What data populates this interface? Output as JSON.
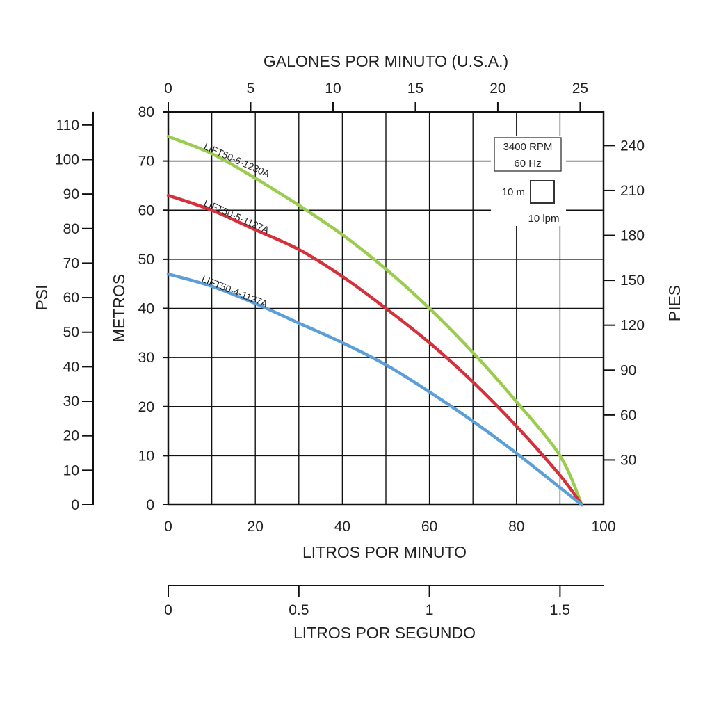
{
  "chart_data": {
    "type": "line",
    "title": "",
    "grid": true,
    "x_axis": {
      "label": "LITROS POR MINUTO",
      "range": [
        0,
        100
      ],
      "ticks": [
        0,
        20,
        40,
        60,
        80,
        100
      ]
    },
    "x2_axis_top": {
      "label": "GALONES POR MINUTO (U.S.A.)",
      "range": [
        0,
        26.4
      ],
      "ticks": [
        0,
        5,
        10,
        15,
        20,
        25
      ]
    },
    "x3_axis_bottom": {
      "label": "LITROS POR SEGUNDO",
      "range": [
        0,
        1.67
      ],
      "ticks": [
        0,
        0.5,
        1,
        1.5
      ]
    },
    "y_axis": {
      "label": "METROS",
      "range": [
        0,
        80
      ],
      "ticks": [
        0,
        10,
        20,
        30,
        40,
        50,
        60,
        70,
        80
      ]
    },
    "y2_axis_left": {
      "label": "PSI",
      "range": [
        0,
        113.8
      ],
      "ticks": [
        0,
        10,
        20,
        30,
        40,
        50,
        60,
        70,
        80,
        90,
        100,
        110
      ]
    },
    "y3_axis_right": {
      "label": "PIES",
      "range": [
        0,
        262.5
      ],
      "ticks": [
        30,
        60,
        90,
        120,
        150,
        180,
        210,
        240
      ]
    },
    "series": [
      {
        "name": "LIFT50-6-1230A",
        "color": "#9acd4f",
        "label_angle": 24,
        "label_anchor": [
          8,
          72.5
        ],
        "x": [
          0,
          10,
          20,
          30,
          40,
          50,
          60,
          70,
          80,
          90,
          95
        ],
        "y": [
          75,
          71.5,
          66.5,
          61,
          55,
          48,
          40,
          31,
          21,
          10,
          0
        ]
      },
      {
        "name": "LIFT50-5-1127A",
        "color": "#d6303a",
        "label_angle": 24,
        "label_anchor": [
          8,
          61
        ],
        "x": [
          0,
          10,
          20,
          30,
          40,
          50,
          60,
          70,
          80,
          90,
          95
        ],
        "y": [
          63,
          60,
          56,
          52,
          46.5,
          40,
          33,
          25,
          16,
          6,
          0
        ]
      },
      {
        "name": "LIFT50-4-1127A",
        "color": "#5c9fd8",
        "label_angle": 22,
        "label_anchor": [
          7.5,
          45.5
        ],
        "x": [
          0,
          10,
          20,
          30,
          40,
          50,
          60,
          70,
          80,
          90,
          95
        ],
        "y": [
          47,
          44.5,
          41,
          37,
          33,
          28.5,
          23,
          17,
          10.5,
          3.5,
          0
        ]
      }
    ],
    "annotation_box": {
      "line1": "3400 RPM",
      "line2": "60 Hz",
      "scale_vertical": "10 m",
      "scale_horizontal": "10 lpm"
    }
  }
}
